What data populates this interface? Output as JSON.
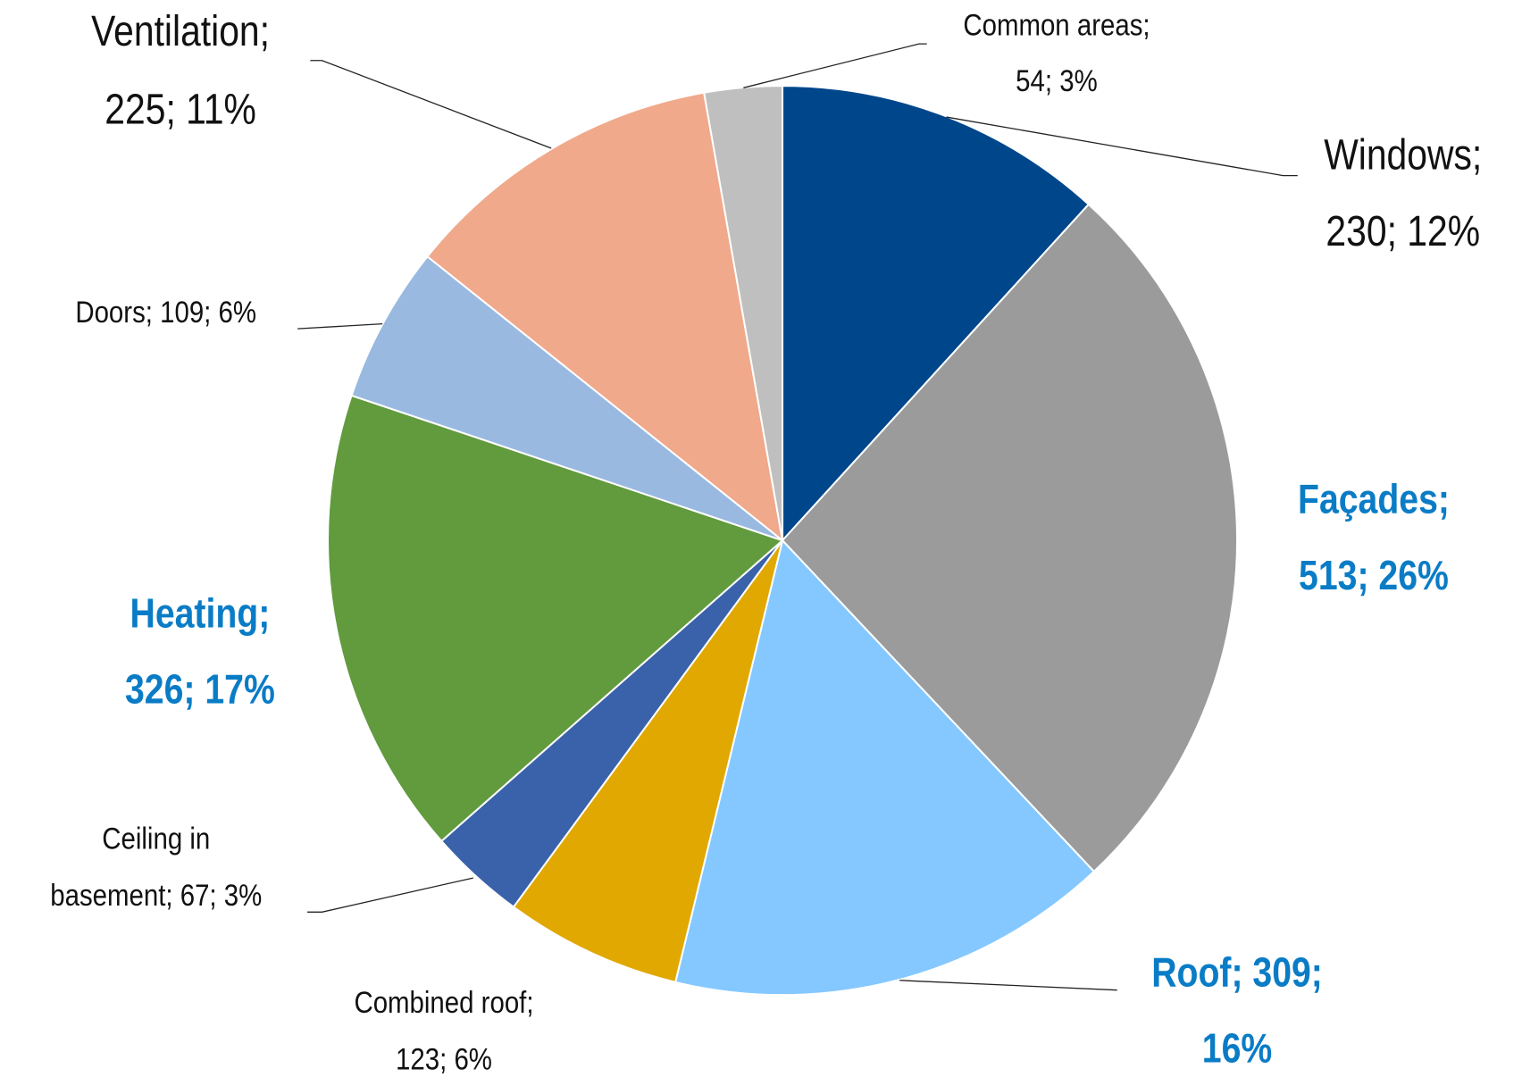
{
  "chart_data": {
    "type": "pie",
    "values": [
      230,
      513,
      309,
      123,
      67,
      326,
      109,
      225,
      54
    ],
    "value_labels": [
      [
        "Windows;",
        "230; 12%"
      ],
      [
        "Façades;",
        "513; 26%"
      ],
      [
        "Roof; 309;",
        "16%"
      ],
      [
        "Combined roof;",
        "123; 6%"
      ],
      [
        "Ceiling in",
        "basement; 67; 3%"
      ],
      [
        "Heating;",
        "326; 17%"
      ],
      [
        "Doors; 109; 6%"
      ],
      [
        "Ventilation;",
        "225; 11%"
      ],
      [
        "Common areas;",
        "54; 3%"
      ]
    ],
    "colors": [
      "#00468b",
      "#9b9b9b",
      "#85c8ff",
      "#e0a800",
      "#3a62aa",
      "#629a3e",
      "#99b9e0",
      "#f0a98b",
      "#bfbfbf"
    ],
    "label_colors": [
      "#111111",
      "#0a7cc6",
      "#0a7cc6",
      "#111111",
      "#111111",
      "#0a7cc6",
      "#111111",
      "#111111",
      "#111111"
    ]
  }
}
